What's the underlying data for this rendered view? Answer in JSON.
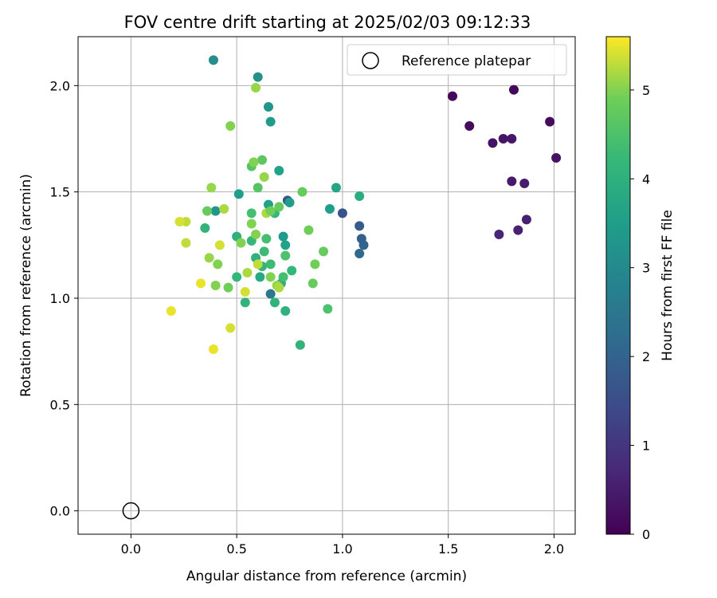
{
  "chart_data": {
    "type": "scatter",
    "title": "FOV centre drift starting at 2025/02/03 09:12:33",
    "xlabel": "Angular distance from reference (arcmin)",
    "ylabel": "Rotation from reference (arcmin)",
    "xlim": [
      -0.25,
      2.1
    ],
    "ylim": [
      -0.11,
      2.23
    ],
    "x_ticks": [
      0.0,
      0.5,
      1.0,
      1.5,
      2.0
    ],
    "x_tick_labels": [
      "0.0",
      "0.5",
      "1.0",
      "1.5",
      "2.0"
    ],
    "y_ticks": [
      0.0,
      0.5,
      1.0,
      1.5,
      2.0
    ],
    "y_tick_labels": [
      "0.0",
      "0.5",
      "1.0",
      "1.5",
      "2.0"
    ],
    "grid": true,
    "legend": {
      "placement": "top-right",
      "entries": [
        "Reference platepar"
      ]
    },
    "colorbar": {
      "label": "Hours from first FF file",
      "colormap": "viridis",
      "range": [
        0,
        5.6
      ],
      "ticks": [
        0,
        1,
        2,
        3,
        4,
        5
      ],
      "tick_labels": [
        "0",
        "1",
        "2",
        "3",
        "4",
        "5"
      ]
    },
    "reference_point": {
      "name": "Reference platepar",
      "x": 0.0,
      "y": 0.0
    },
    "points": [
      {
        "x": 1.52,
        "y": 1.95,
        "c": 0.1
      },
      {
        "x": 1.6,
        "y": 1.81,
        "c": 0.2
      },
      {
        "x": 1.71,
        "y": 1.73,
        "c": 0.3
      },
      {
        "x": 1.76,
        "y": 1.75,
        "c": 0.35
      },
      {
        "x": 1.8,
        "y": 1.75,
        "c": 0.4
      },
      {
        "x": 1.81,
        "y": 1.98,
        "c": 0.15
      },
      {
        "x": 1.98,
        "y": 1.83,
        "c": 0.2
      },
      {
        "x": 2.01,
        "y": 1.66,
        "c": 0.3
      },
      {
        "x": 1.8,
        "y": 1.55,
        "c": 0.45
      },
      {
        "x": 1.86,
        "y": 1.54,
        "c": 0.5
      },
      {
        "x": 1.87,
        "y": 1.37,
        "c": 0.55
      },
      {
        "x": 1.83,
        "y": 1.32,
        "c": 0.6
      },
      {
        "x": 1.74,
        "y": 1.3,
        "c": 0.65
      },
      {
        "x": 1.0,
        "y": 1.4,
        "c": 1.6
      },
      {
        "x": 0.74,
        "y": 1.46,
        "c": 1.7
      },
      {
        "x": 1.08,
        "y": 1.34,
        "c": 1.8
      },
      {
        "x": 1.09,
        "y": 1.28,
        "c": 1.9
      },
      {
        "x": 1.1,
        "y": 1.25,
        "c": 2.0
      },
      {
        "x": 1.08,
        "y": 1.21,
        "c": 2.1
      },
      {
        "x": 0.66,
        "y": 1.02,
        "c": 2.5
      },
      {
        "x": 0.39,
        "y": 2.12,
        "c": 3.1
      },
      {
        "x": 0.6,
        "y": 2.04,
        "c": 3.2
      },
      {
        "x": 0.65,
        "y": 1.9,
        "c": 3.3
      },
      {
        "x": 0.66,
        "y": 1.83,
        "c": 3.4
      },
      {
        "x": 0.7,
        "y": 1.6,
        "c": 3.6
      },
      {
        "x": 0.51,
        "y": 1.49,
        "c": 3.5
      },
      {
        "x": 0.4,
        "y": 1.41,
        "c": 3.3
      },
      {
        "x": 0.94,
        "y": 1.42,
        "c": 3.5
      },
      {
        "x": 0.97,
        "y": 1.52,
        "c": 3.7
      },
      {
        "x": 1.08,
        "y": 1.48,
        "c": 3.9
      },
      {
        "x": 0.75,
        "y": 1.45,
        "c": 3.5
      },
      {
        "x": 0.72,
        "y": 1.29,
        "c": 3.4
      },
      {
        "x": 0.73,
        "y": 1.25,
        "c": 3.6
      },
      {
        "x": 0.65,
        "y": 1.44,
        "c": 3.6
      },
      {
        "x": 0.61,
        "y": 1.1,
        "c": 3.8
      },
      {
        "x": 0.71,
        "y": 1.07,
        "c": 3.9
      },
      {
        "x": 0.35,
        "y": 1.33,
        "c": 4.1
      },
      {
        "x": 0.5,
        "y": 1.29,
        "c": 4.0
      },
      {
        "x": 0.57,
        "y": 1.27,
        "c": 4.2
      },
      {
        "x": 0.59,
        "y": 1.19,
        "c": 4.0
      },
      {
        "x": 0.63,
        "y": 1.22,
        "c": 4.3
      },
      {
        "x": 0.64,
        "y": 1.28,
        "c": 4.4
      },
      {
        "x": 0.68,
        "y": 1.4,
        "c": 4.2
      },
      {
        "x": 0.57,
        "y": 1.4,
        "c": 4.4
      },
      {
        "x": 0.62,
        "y": 1.15,
        "c": 4.1
      },
      {
        "x": 0.66,
        "y": 1.16,
        "c": 4.3
      },
      {
        "x": 0.72,
        "y": 1.1,
        "c": 4.4
      },
      {
        "x": 0.76,
        "y": 1.13,
        "c": 4.2
      },
      {
        "x": 0.73,
        "y": 1.2,
        "c": 4.5
      },
      {
        "x": 0.5,
        "y": 1.1,
        "c": 4.2
      },
      {
        "x": 0.54,
        "y": 0.98,
        "c": 4.1
      },
      {
        "x": 0.68,
        "y": 0.98,
        "c": 4.1
      },
      {
        "x": 0.73,
        "y": 0.94,
        "c": 4.0
      },
      {
        "x": 0.8,
        "y": 0.78,
        "c": 4.1
      },
      {
        "x": 0.93,
        "y": 0.95,
        "c": 4.5
      },
      {
        "x": 0.6,
        "y": 1.52,
        "c": 4.6
      },
      {
        "x": 0.62,
        "y": 1.65,
        "c": 4.7
      },
      {
        "x": 0.57,
        "y": 1.62,
        "c": 4.6
      },
      {
        "x": 0.58,
        "y": 1.64,
        "c": 5.0
      },
      {
        "x": 0.47,
        "y": 1.81,
        "c": 5.0
      },
      {
        "x": 0.59,
        "y": 1.99,
        "c": 5.1
      },
      {
        "x": 0.63,
        "y": 1.57,
        "c": 5.1
      },
      {
        "x": 0.81,
        "y": 1.5,
        "c": 4.8
      },
      {
        "x": 0.57,
        "y": 1.35,
        "c": 5.0
      },
      {
        "x": 0.59,
        "y": 1.3,
        "c": 5.0
      },
      {
        "x": 0.64,
        "y": 1.4,
        "c": 5.2
      },
      {
        "x": 0.66,
        "y": 1.41,
        "c": 4.9
      },
      {
        "x": 0.7,
        "y": 1.43,
        "c": 4.8
      },
      {
        "x": 0.38,
        "y": 1.52,
        "c": 5.1
      },
      {
        "x": 0.36,
        "y": 1.41,
        "c": 4.8
      },
      {
        "x": 0.44,
        "y": 1.42,
        "c": 5.2
      },
      {
        "x": 0.84,
        "y": 1.32,
        "c": 4.9
      },
      {
        "x": 0.87,
        "y": 1.16,
        "c": 4.9
      },
      {
        "x": 0.91,
        "y": 1.22,
        "c": 4.8
      },
      {
        "x": 0.86,
        "y": 1.07,
        "c": 4.8
      },
      {
        "x": 0.52,
        "y": 1.26,
        "c": 5.0
      },
      {
        "x": 0.6,
        "y": 1.16,
        "c": 5.3
      },
      {
        "x": 0.66,
        "y": 1.1,
        "c": 5.0
      },
      {
        "x": 0.55,
        "y": 1.12,
        "c": 5.2
      },
      {
        "x": 0.69,
        "y": 1.06,
        "c": 5.1
      },
      {
        "x": 0.7,
        "y": 1.05,
        "c": 5.2
      },
      {
        "x": 0.46,
        "y": 1.05,
        "c": 4.9
      },
      {
        "x": 0.41,
        "y": 1.16,
        "c": 5.0
      },
      {
        "x": 0.37,
        "y": 1.19,
        "c": 5.1
      },
      {
        "x": 0.4,
        "y": 1.06,
        "c": 5.0
      },
      {
        "x": 0.26,
        "y": 1.36,
        "c": 5.3
      },
      {
        "x": 0.23,
        "y": 1.36,
        "c": 5.4
      },
      {
        "x": 0.26,
        "y": 1.26,
        "c": 5.3
      },
      {
        "x": 0.42,
        "y": 1.25,
        "c": 5.4
      },
      {
        "x": 0.54,
        "y": 1.03,
        "c": 5.4
      },
      {
        "x": 0.33,
        "y": 1.07,
        "c": 5.5
      },
      {
        "x": 0.19,
        "y": 0.94,
        "c": 5.5
      },
      {
        "x": 0.47,
        "y": 0.86,
        "c": 5.4
      },
      {
        "x": 0.39,
        "y": 0.76,
        "c": 5.5
      }
    ]
  }
}
